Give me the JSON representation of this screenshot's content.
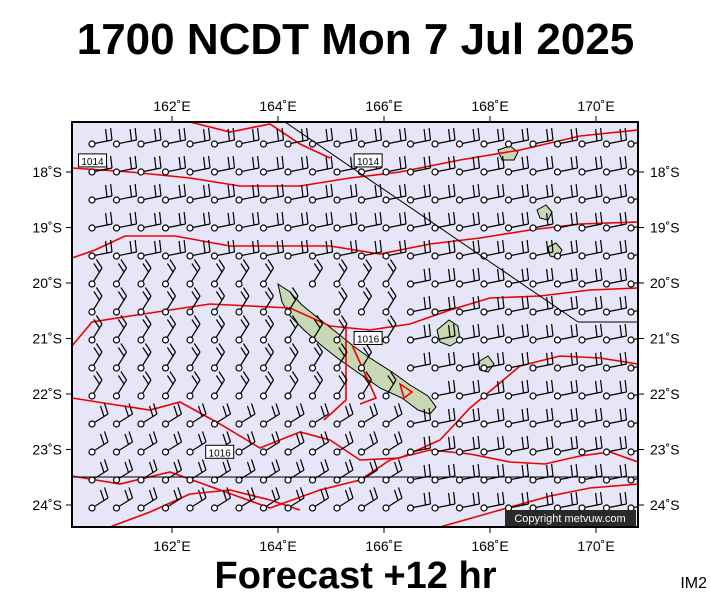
{
  "title": "1700 NCDT Mon 7 Jul 2025",
  "forecast_label": "Forecast +12 hr",
  "product_code": "IM2",
  "copyright": "Copyright metvuw.com",
  "colors": {
    "map_background": "#e6e6f8",
    "isobar": "#ee0000",
    "land": "#c8d8b4",
    "frame": "#000000"
  },
  "axes": {
    "longitude_ticks": [
      "162˚E",
      "164˚E",
      "166˚E",
      "168˚E",
      "170˚E"
    ],
    "latitude_ticks": [
      "18˚S",
      "19˚S",
      "20˚S",
      "21˚S",
      "22˚S",
      "23˚S",
      "24˚S"
    ],
    "longitude_range": [
      160.0,
      170.75
    ],
    "latitude_range": [
      -24.4,
      -17.25
    ]
  },
  "isobar_labels": [
    {
      "text": "1014",
      "lon": 160.5,
      "lat": -17.8
    },
    {
      "text": "1014",
      "lon": 165.7,
      "lat": -17.8
    },
    {
      "text": "1016",
      "lon": 165.7,
      "lat": -21.0
    },
    {
      "text": "1016",
      "lon": 162.9,
      "lat": -23.05
    }
  ],
  "icons": {
    "wind_barb": "wind-barb-icon",
    "island": "island-icon"
  }
}
